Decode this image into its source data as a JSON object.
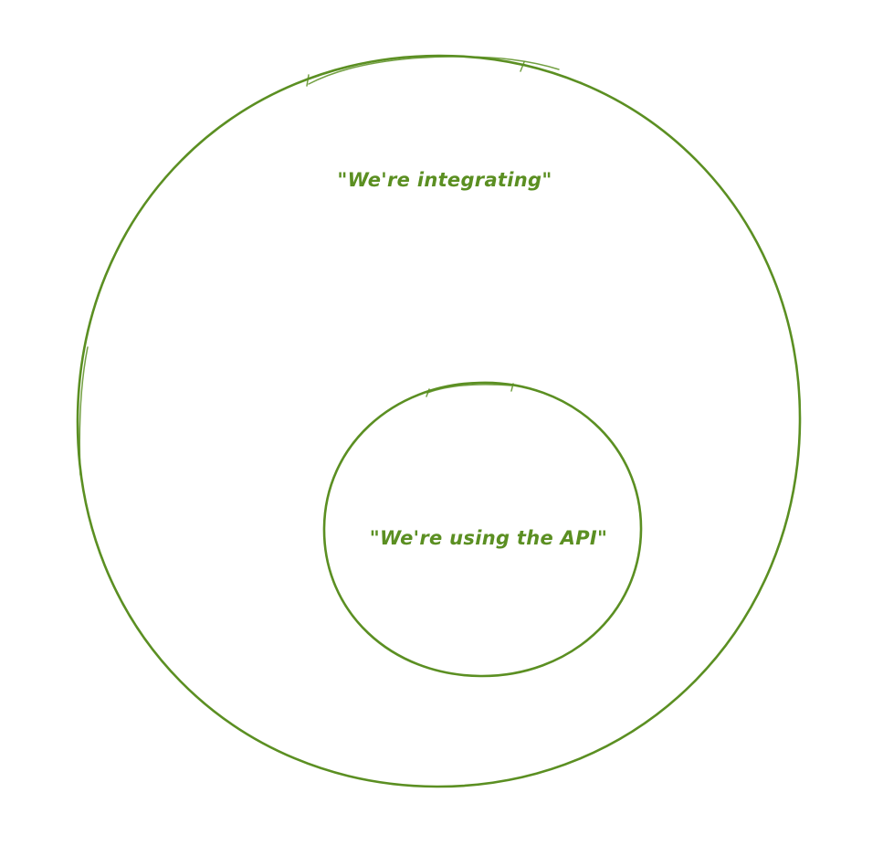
{
  "diagram": {
    "stroke_color": "#5b8f22",
    "outer_circle": {
      "label": "\"We're integrating\""
    },
    "inner_circle": {
      "label": "\"We're using the API\""
    }
  }
}
